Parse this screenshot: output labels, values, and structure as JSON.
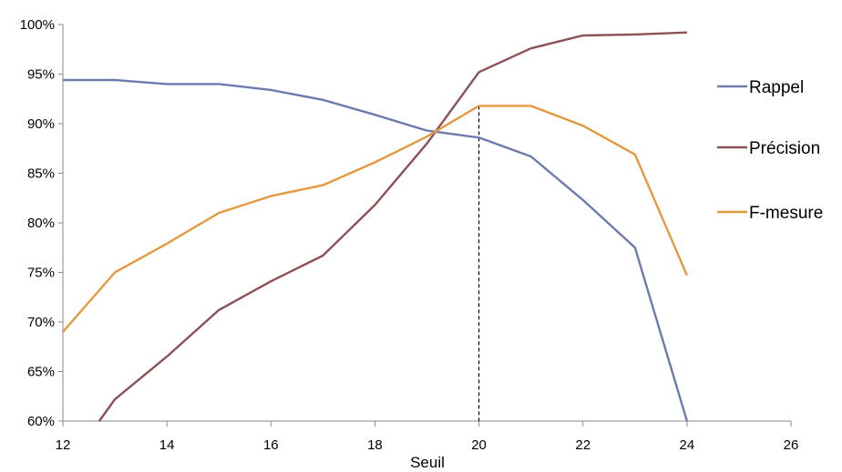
{
  "chart_data": {
    "type": "line",
    "title": "",
    "xlabel": "Seuil",
    "ylabel": "",
    "xlim": [
      12,
      26
    ],
    "ylim": [
      0.6,
      1.0
    ],
    "xticks": [
      "12",
      "14",
      "16",
      "18",
      "20",
      "22",
      "24",
      "26"
    ],
    "yticks": [
      "60%",
      "65%",
      "70%",
      "75%",
      "80%",
      "85%",
      "90%",
      "95%",
      "100%"
    ],
    "grid": false,
    "legend": "right",
    "reference_line_x": 20,
    "series": [
      {
        "name": "Rappel",
        "color": "#6b7bb0",
        "x": [
          12,
          13,
          14,
          15,
          16,
          17,
          18,
          19,
          20,
          21,
          22,
          23,
          24
        ],
        "y": [
          0.944,
          0.944,
          0.94,
          0.94,
          0.934,
          0.924,
          0.909,
          0.893,
          0.886,
          0.867,
          0.823,
          0.775,
          0.6
        ]
      },
      {
        "name": "Précision",
        "color": "#8c5156",
        "x": [
          12.7,
          13,
          14,
          15,
          16,
          17,
          18,
          19,
          20,
          21,
          22,
          23,
          24
        ],
        "y": [
          0.6,
          0.622,
          0.665,
          0.712,
          0.741,
          0.767,
          0.818,
          0.88,
          0.952,
          0.976,
          0.989,
          0.99,
          0.992
        ]
      },
      {
        "name": "F-mesure",
        "color": "#e39a3e",
        "x": [
          12,
          13,
          14,
          15,
          16,
          17,
          18,
          19,
          20,
          21,
          22,
          23,
          24
        ],
        "y": [
          0.69,
          0.75,
          0.779,
          0.81,
          0.827,
          0.838,
          0.861,
          0.887,
          0.918,
          0.918,
          0.898,
          0.869,
          0.747
        ]
      }
    ]
  }
}
